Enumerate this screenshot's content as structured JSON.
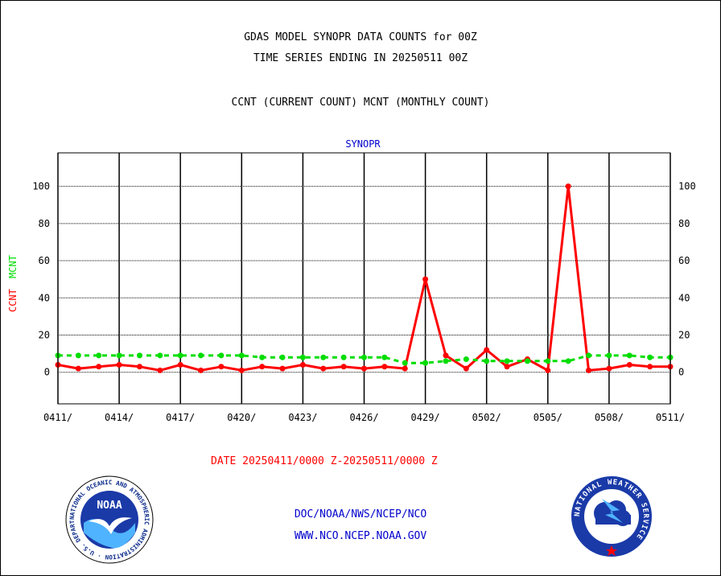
{
  "titles": {
    "line1": "GDAS MODEL SYNOPR DATA COUNTS for 00Z",
    "line2": "TIME SERIES ENDING IN 20250511 00Z",
    "line3": "CCNT (CURRENT COUNT) MCNT (MONTHLY COUNT)"
  },
  "footer": {
    "date_range": "DATE 20250411/0000 Z-20250511/0000 Z",
    "org_path": "DOC/NOAA/NWS/NCEP/NCO",
    "website": "WWW.NCO.NCEP.NOAA.GOV"
  },
  "logos": {
    "noaa_text": "NOAA",
    "noaa_ring": "NATIONAL OCEANIC AND ATMOSPHERIC ADMINISTRATION · U.S. DEPARTMENT OF COMMERCE",
    "nws_ring": "NATIONAL WEATHER SERVICE"
  },
  "colors": {
    "ccnt": "#ff0000",
    "mcnt": "#00dd00",
    "accent_blue": "#0000cc"
  },
  "chart_data": {
    "type": "line",
    "title": "SYNOPR",
    "ylabel_left": [
      "CCNT",
      "MCNT"
    ],
    "ylim": [
      -17,
      118
    ],
    "yticks": [
      0,
      20,
      40,
      60,
      80,
      100
    ],
    "grid": true,
    "x_tick_labels": [
      "0411/",
      "0414/",
      "0417/",
      "0420/",
      "0423/",
      "0426/",
      "0429/",
      "0502/",
      "0505/",
      "0508/",
      "0511/"
    ],
    "x_tick_interval_days": 3,
    "x": [
      "0411",
      "0412",
      "0413",
      "0414",
      "0415",
      "0416",
      "0417",
      "0418",
      "0419",
      "0420",
      "0421",
      "0422",
      "0423",
      "0424",
      "0425",
      "0426",
      "0427",
      "0428",
      "0429",
      "0430",
      "0501",
      "0502",
      "0503",
      "0504",
      "0505",
      "0506",
      "0507",
      "0508",
      "0509",
      "0510",
      "0511"
    ],
    "series": [
      {
        "name": "CCNT",
        "color": "#ff0000",
        "style": "solid",
        "values": [
          4,
          2,
          3,
          4,
          3,
          1,
          4,
          1,
          3,
          1,
          3,
          2,
          4,
          2,
          3,
          2,
          3,
          2,
          50,
          9,
          2,
          12,
          3,
          7,
          1,
          100,
          1,
          2,
          4,
          3,
          3
        ]
      },
      {
        "name": "MCNT",
        "color": "#00dd00",
        "style": "dashed",
        "values": [
          9,
          9,
          9,
          9,
          9,
          9,
          9,
          9,
          9,
          9,
          8,
          8,
          8,
          8,
          8,
          8,
          8,
          5,
          5,
          6,
          7,
          6,
          6,
          6,
          6,
          6,
          9,
          9,
          9,
          8,
          8
        ]
      }
    ]
  }
}
